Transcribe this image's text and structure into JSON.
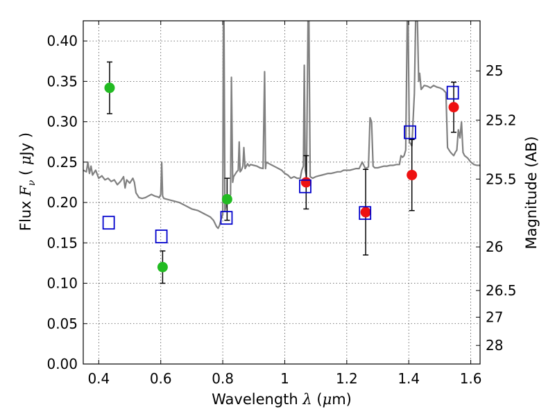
{
  "chart_data": {
    "type": "scatter",
    "xlabel": {
      "prefix": "Wavelength ",
      "symbol": "λ",
      "unit_open": " (",
      "unit_mu": "μ",
      "unit_rest": "m)"
    },
    "ylabel": {
      "prefix": "Flux  ",
      "symbol": "F",
      "sub": "ν",
      "unit": "  ( ",
      "unit_mu": "μ",
      "unit_rest": "Jy )"
    },
    "y2label": "Magnitude (AB)",
    "xlim": [
      0.35,
      1.63
    ],
    "ylim": [
      0.0,
      0.425
    ],
    "xticks": [
      0.4,
      0.6,
      0.8,
      1.0,
      1.2,
      1.4,
      1.6
    ],
    "xtick_labels": [
      "0.4",
      "0.6",
      "0.8",
      "1",
      "1.2",
      "1.4",
      "1.6"
    ],
    "yticks": [
      0.0,
      0.05,
      0.1,
      0.15,
      0.2,
      0.25,
      0.3,
      0.35,
      0.4
    ],
    "ytick_labels": [
      "0.00",
      "0.05",
      "0.10",
      "0.15",
      "0.20",
      "0.25",
      "0.30",
      "0.35",
      "0.40"
    ],
    "y2ticks": [
      {
        "label": "25",
        "flux": 0.363
      },
      {
        "label": "25.2",
        "flux": 0.302
      },
      {
        "label": "25.5",
        "flux": 0.229
      },
      {
        "label": "26",
        "flux": 0.145
      },
      {
        "label": "26.5",
        "flux": 0.091
      },
      {
        "label": "27",
        "flux": 0.058
      },
      {
        "label": "28",
        "flux": 0.023
      }
    ],
    "grid": true,
    "colors": {
      "spectrum": "#808080",
      "green": "#22bb22",
      "red": "#ee1111",
      "model": "#0000cc",
      "errorbar": "#000000"
    },
    "series": [
      {
        "style": "green-circle",
        "points": [
          {
            "x": 0.435,
            "y": 0.342,
            "err": 0.032
          },
          {
            "x": 0.606,
            "y": 0.12,
            "err": 0.02
          },
          {
            "x": 0.814,
            "y": 0.204,
            "err": 0.026
          }
        ]
      },
      {
        "style": "red-circle",
        "points": [
          {
            "x": 1.069,
            "y": 0.225,
            "err": 0.033
          },
          {
            "x": 1.261,
            "y": 0.188,
            "err": 0.053
          },
          {
            "x": 1.41,
            "y": 0.234,
            "err": 0.044
          },
          {
            "x": 1.545,
            "y": 0.318,
            "err": 0.031
          }
        ]
      },
      {
        "style": "blue-open-square",
        "points": [
          {
            "x": 0.432,
            "y": 0.175
          },
          {
            "x": 0.602,
            "y": 0.158
          },
          {
            "x": 0.812,
            "y": 0.181
          },
          {
            "x": 1.066,
            "y": 0.22
          },
          {
            "x": 1.259,
            "y": 0.187
          },
          {
            "x": 1.404,
            "y": 0.287
          },
          {
            "x": 1.542,
            "y": 0.336
          }
        ]
      },
      {
        "style": "spectrum-line",
        "points": [
          [
            0.35,
            0.24
          ],
          [
            0.36,
            0.238
          ],
          [
            0.365,
            0.25
          ],
          [
            0.37,
            0.236
          ],
          [
            0.375,
            0.245
          ],
          [
            0.38,
            0.234
          ],
          [
            0.39,
            0.24
          ],
          [
            0.4,
            0.23
          ],
          [
            0.41,
            0.233
          ],
          [
            0.42,
            0.228
          ],
          [
            0.43,
            0.23
          ],
          [
            0.44,
            0.226
          ],
          [
            0.45,
            0.228
          ],
          [
            0.46,
            0.222
          ],
          [
            0.47,
            0.226
          ],
          [
            0.48,
            0.232
          ],
          [
            0.485,
            0.218
          ],
          [
            0.49,
            0.228
          ],
          [
            0.5,
            0.224
          ],
          [
            0.51,
            0.23
          ],
          [
            0.515,
            0.225
          ],
          [
            0.52,
            0.212
          ],
          [
            0.53,
            0.206
          ],
          [
            0.54,
            0.205
          ],
          [
            0.55,
            0.206
          ],
          [
            0.56,
            0.208
          ],
          [
            0.57,
            0.21
          ],
          [
            0.58,
            0.208
          ],
          [
            0.59,
            0.207
          ],
          [
            0.595,
            0.206
          ],
          [
            0.6,
            0.21
          ],
          [
            0.603,
            0.25
          ],
          [
            0.606,
            0.208
          ],
          [
            0.61,
            0.205
          ],
          [
            0.62,
            0.204
          ],
          [
            0.63,
            0.203
          ],
          [
            0.64,
            0.202
          ],
          [
            0.65,
            0.201
          ],
          [
            0.66,
            0.2
          ],
          [
            0.67,
            0.198
          ],
          [
            0.68,
            0.196
          ],
          [
            0.69,
            0.194
          ],
          [
            0.7,
            0.192
          ],
          [
            0.71,
            0.191
          ],
          [
            0.72,
            0.19
          ],
          [
            0.73,
            0.188
          ],
          [
            0.74,
            0.186
          ],
          [
            0.75,
            0.184
          ],
          [
            0.76,
            0.182
          ],
          [
            0.77,
            0.178
          ],
          [
            0.78,
            0.17
          ],
          [
            0.785,
            0.168
          ],
          [
            0.79,
            0.172
          ],
          [
            0.795,
            0.18
          ],
          [
            0.8,
            0.185
          ],
          [
            0.802,
            0.425
          ],
          [
            0.804,
            0.425
          ],
          [
            0.807,
            0.19
          ],
          [
            0.81,
            0.195
          ],
          [
            0.815,
            0.205
          ],
          [
            0.82,
            0.2
          ],
          [
            0.825,
            0.21
          ],
          [
            0.828,
            0.355
          ],
          [
            0.832,
            0.225
          ],
          [
            0.835,
            0.232
          ],
          [
            0.84,
            0.235
          ],
          [
            0.845,
            0.238
          ],
          [
            0.85,
            0.24
          ],
          [
            0.853,
            0.275
          ],
          [
            0.856,
            0.238
          ],
          [
            0.86,
            0.24
          ],
          [
            0.865,
            0.245
          ],
          [
            0.868,
            0.268
          ],
          [
            0.872,
            0.242
          ],
          [
            0.88,
            0.248
          ],
          [
            0.885,
            0.245
          ],
          [
            0.89,
            0.247
          ],
          [
            0.9,
            0.246
          ],
          [
            0.91,
            0.245
          ],
          [
            0.92,
            0.243
          ],
          [
            0.93,
            0.242
          ],
          [
            0.935,
            0.362
          ],
          [
            0.938,
            0.242
          ],
          [
            0.94,
            0.25
          ],
          [
            0.95,
            0.248
          ],
          [
            0.96,
            0.246
          ],
          [
            0.97,
            0.244
          ],
          [
            0.98,
            0.242
          ],
          [
            0.99,
            0.24
          ],
          [
            1.0,
            0.236
          ],
          [
            1.01,
            0.234
          ],
          [
            1.02,
            0.23
          ],
          [
            1.03,
            0.232
          ],
          [
            1.04,
            0.23
          ],
          [
            1.05,
            0.23
          ],
          [
            1.055,
            0.24
          ],
          [
            1.06,
            0.245
          ],
          [
            1.063,
            0.37
          ],
          [
            1.066,
            0.24
          ],
          [
            1.07,
            0.232
          ],
          [
            1.075,
            0.425
          ],
          [
            1.078,
            0.425
          ],
          [
            1.082,
            0.232
          ],
          [
            1.09,
            0.23
          ],
          [
            1.1,
            0.232
          ],
          [
            1.11,
            0.233
          ],
          [
            1.12,
            0.234
          ],
          [
            1.13,
            0.235
          ],
          [
            1.14,
            0.236
          ],
          [
            1.15,
            0.236
          ],
          [
            1.16,
            0.237
          ],
          [
            1.17,
            0.238
          ],
          [
            1.18,
            0.238
          ],
          [
            1.19,
            0.24
          ],
          [
            1.2,
            0.24
          ],
          [
            1.21,
            0.24
          ],
          [
            1.22,
            0.241
          ],
          [
            1.23,
            0.242
          ],
          [
            1.24,
            0.242
          ],
          [
            1.25,
            0.25
          ],
          [
            1.26,
            0.242
          ],
          [
            1.27,
            0.244
          ],
          [
            1.275,
            0.305
          ],
          [
            1.28,
            0.3
          ],
          [
            1.285,
            0.245
          ],
          [
            1.29,
            0.243
          ],
          [
            1.3,
            0.243
          ],
          [
            1.31,
            0.244
          ],
          [
            1.32,
            0.245
          ],
          [
            1.33,
            0.245
          ],
          [
            1.34,
            0.246
          ],
          [
            1.35,
            0.246
          ],
          [
            1.36,
            0.247
          ],
          [
            1.37,
            0.247
          ],
          [
            1.375,
            0.258
          ],
          [
            1.38,
            0.256
          ],
          [
            1.385,
            0.258
          ],
          [
            1.39,
            0.265
          ],
          [
            1.395,
            0.425
          ],
          [
            1.398,
            0.425
          ],
          [
            1.402,
            0.275
          ],
          [
            1.41,
            0.27
          ],
          [
            1.415,
            0.31
          ],
          [
            1.418,
            0.335
          ],
          [
            1.422,
            0.425
          ],
          [
            1.428,
            0.425
          ],
          [
            1.432,
            0.35
          ],
          [
            1.435,
            0.36
          ],
          [
            1.44,
            0.34
          ],
          [
            1.45,
            0.345
          ],
          [
            1.46,
            0.344
          ],
          [
            1.47,
            0.342
          ],
          [
            1.48,
            0.345
          ],
          [
            1.49,
            0.343
          ],
          [
            1.5,
            0.342
          ],
          [
            1.51,
            0.34
          ],
          [
            1.52,
            0.336
          ],
          [
            1.525,
            0.268
          ],
          [
            1.53,
            0.265
          ],
          [
            1.535,
            0.262
          ],
          [
            1.54,
            0.26
          ],
          [
            1.545,
            0.258
          ],
          [
            1.55,
            0.262
          ],
          [
            1.555,
            0.265
          ],
          [
            1.56,
            0.29
          ],
          [
            1.565,
            0.28
          ],
          [
            1.57,
            0.3
          ],
          [
            1.575,
            0.262
          ],
          [
            1.58,
            0.258
          ],
          [
            1.59,
            0.255
          ],
          [
            1.6,
            0.25
          ],
          [
            1.61,
            0.247
          ],
          [
            1.62,
            0.246
          ],
          [
            1.63,
            0.246
          ]
        ]
      }
    ]
  }
}
